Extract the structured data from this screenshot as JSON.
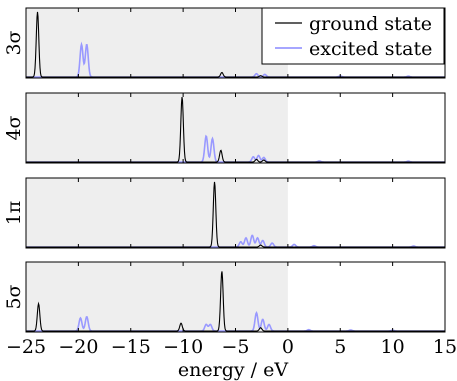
{
  "chart_data": {
    "type": "line",
    "xlabel": "energy / eV",
    "xlim": [
      -25,
      15
    ],
    "x_ticks": [
      "−25",
      "−20",
      "−15",
      "−10",
      "−5",
      "0",
      "5",
      "10",
      "15"
    ],
    "x_tick_values": [
      -25,
      -20,
      -15,
      -10,
      -5,
      0,
      5,
      10,
      15
    ],
    "shaded_region": [
      -25,
      0
    ],
    "colors": {
      "ground": "#000000",
      "excited": "#9999ff",
      "shade": "#eeeeee"
    },
    "legend": {
      "placement": "top-right of first panel",
      "entries": [
        {
          "label": "ground state",
          "color": "#000000"
        },
        {
          "label": "excited state",
          "color": "#9999ff"
        }
      ]
    },
    "panels": [
      {
        "label": "3σ",
        "ground_state": {
          "peaks": [
            [
              -23.9,
              1.0
            ],
            [
              -6.3,
              0.07
            ],
            [
              -2.6,
              0.02
            ]
          ]
        },
        "excited_state": {
          "peaks": [
            [
              -19.7,
              0.5
            ],
            [
              -19.2,
              0.5
            ],
            [
              -3.0,
              0.05
            ],
            [
              -2.2,
              0.04
            ],
            [
              5.0,
              0.015
            ],
            [
              11.5,
              0.012
            ]
          ]
        }
      },
      {
        "label": "4σ",
        "ground_state": {
          "peaks": [
            [
              -10.1,
              1.0
            ],
            [
              -6.4,
              0.18
            ],
            [
              -3.0,
              0.04
            ],
            [
              -2.3,
              0.03
            ]
          ]
        },
        "excited_state": {
          "peaks": [
            [
              -7.8,
              0.4
            ],
            [
              -7.2,
              0.36
            ],
            [
              -3.3,
              0.08
            ],
            [
              -2.8,
              0.1
            ],
            [
              -2.3,
              0.07
            ],
            [
              3.0,
              0.015
            ],
            [
              11.5,
              0.012
            ]
          ]
        }
      },
      {
        "label": "1π",
        "ground_state": {
          "peaks": [
            [
              -7.0,
              1.0
            ],
            [
              -2.6,
              0.03
            ]
          ]
        },
        "excited_state": {
          "peaks": [
            [
              -4.5,
              0.08
            ],
            [
              -4.0,
              0.14
            ],
            [
              -3.4,
              0.18
            ],
            [
              -2.9,
              0.14
            ],
            [
              -2.4,
              0.1
            ],
            [
              -1.5,
              0.06
            ],
            [
              0.6,
              0.04
            ],
            [
              2.5,
              0.02
            ],
            [
              12.0,
              0.015
            ]
          ]
        }
      },
      {
        "label": "5σ",
        "ground_state": {
          "peaks": [
            [
              -23.8,
              0.42
            ],
            [
              -10.2,
              0.12
            ],
            [
              -6.3,
              0.92
            ],
            [
              -2.6,
              0.05
            ]
          ]
        },
        "excited_state": {
          "peaks": [
            [
              -19.8,
              0.2
            ],
            [
              -19.2,
              0.22
            ],
            [
              -7.8,
              0.1
            ],
            [
              -7.4,
              0.1
            ],
            [
              -3.0,
              0.28
            ],
            [
              -2.4,
              0.18
            ],
            [
              -1.8,
              0.1
            ],
            [
              2.0,
              0.02
            ],
            [
              6.0,
              0.015
            ],
            [
              10.0,
              0.012
            ]
          ]
        }
      }
    ]
  }
}
